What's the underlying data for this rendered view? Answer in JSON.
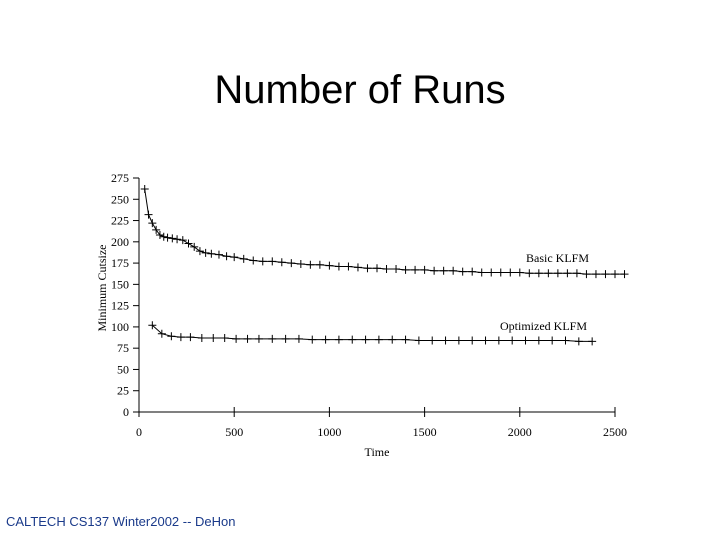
{
  "slide": {
    "title": "Number of Runs",
    "footer": "CALTECH CS137 Winter2002 -- DeHon"
  },
  "colors": {
    "ink": "#000000",
    "footer": "#1a3a8a"
  },
  "chart_data": {
    "type": "line",
    "title": "",
    "xlabel": "Time",
    "ylabel": "Minimum Cutsize",
    "xlim": [
      0,
      2500
    ],
    "ylim": [
      0,
      275
    ],
    "x_ticks": [
      0,
      500,
      1000,
      1500,
      2000,
      2500
    ],
    "y_ticks": [
      0,
      25,
      50,
      75,
      100,
      125,
      150,
      175,
      200,
      225,
      250,
      275
    ],
    "grid": false,
    "legend": "none",
    "series": [
      {
        "name": "Basic KLFM",
        "marker": "plus",
        "x": [
          30,
          50,
          70,
          90,
          110,
          130,
          150,
          175,
          200,
          230,
          260,
          290,
          320,
          350,
          380,
          420,
          460,
          500,
          550,
          600,
          650,
          700,
          750,
          800,
          850,
          900,
          950,
          1000,
          1050,
          1100,
          1150,
          1200,
          1250,
          1300,
          1350,
          1400,
          1450,
          1500,
          1550,
          1600,
          1650,
          1700,
          1750,
          1800,
          1850,
          1900,
          1950,
          2000,
          2050,
          2100,
          2150,
          2200,
          2250,
          2300,
          2350,
          2400,
          2450,
          2500,
          2550
        ],
        "y": [
          262,
          232,
          222,
          214,
          208,
          206,
          205,
          204,
          203,
          202,
          198,
          194,
          189,
          187,
          186,
          185,
          183,
          182,
          180,
          178,
          177,
          177,
          176,
          175,
          174,
          173,
          173,
          172,
          171,
          171,
          170,
          169,
          169,
          168,
          168,
          167,
          167,
          167,
          166,
          166,
          166,
          165,
          165,
          164,
          164,
          164,
          164,
          164,
          163,
          163,
          163,
          163,
          163,
          163,
          162,
          162,
          162,
          162,
          162
        ]
      },
      {
        "name": "Optimized KLFM",
        "marker": "plus",
        "x": [
          70,
          120,
          170,
          220,
          270,
          330,
          390,
          450,
          510,
          570,
          630,
          700,
          770,
          840,
          910,
          980,
          1050,
          1120,
          1190,
          1260,
          1330,
          1400,
          1470,
          1540,
          1610,
          1680,
          1750,
          1820,
          1890,
          1960,
          2030,
          2100,
          2170,
          2240,
          2310,
          2380
        ],
        "y": [
          102,
          92,
          89,
          88,
          88,
          87,
          87,
          87,
          86,
          86,
          86,
          86,
          86,
          86,
          85,
          85,
          85,
          85,
          85,
          85,
          85,
          85,
          84,
          84,
          84,
          84,
          84,
          84,
          84,
          84,
          84,
          84,
          84,
          84,
          83,
          83
        ]
      }
    ]
  }
}
